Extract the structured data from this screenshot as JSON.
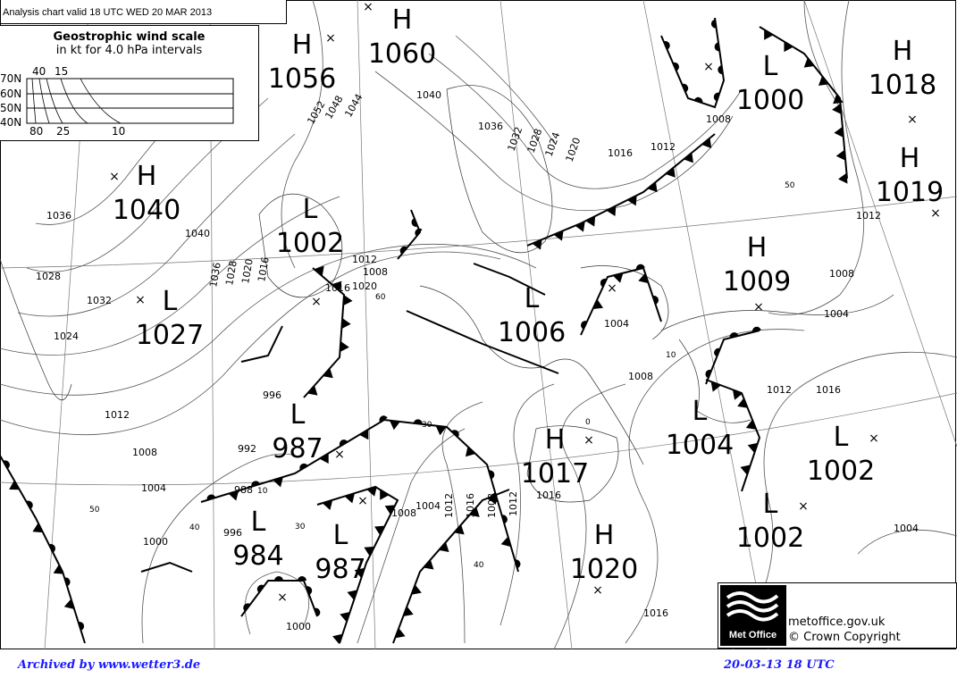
{
  "header": {
    "title": "Analysis chart  valid 18 UTC WED 20  MAR 2013"
  },
  "wind_scale": {
    "title": "Geostrophic wind scale",
    "subtitle": "in kt for 4.0 hPa intervals",
    "latitudes": [
      "70N",
      "60N",
      "50N",
      "40N"
    ],
    "top_labels": [
      "40",
      "15"
    ],
    "bottom_labels": [
      "80",
      "25",
      "10"
    ]
  },
  "pressure_centres": [
    {
      "type": "H",
      "value": "1056"
    },
    {
      "type": "H",
      "value": "1060"
    },
    {
      "type": "L",
      "value": "1000"
    },
    {
      "type": "H",
      "value": "1018"
    },
    {
      "type": "H",
      "value": "1019"
    },
    {
      "type": "H",
      "value": "1040"
    },
    {
      "type": "L",
      "value": "1002"
    },
    {
      "type": "L",
      "value": "1027"
    },
    {
      "type": "H",
      "value": "1009"
    },
    {
      "type": "L",
      "value": "1006"
    },
    {
      "type": "L",
      "value": "987"
    },
    {
      "type": "H",
      "value": "1017"
    },
    {
      "type": "L",
      "value": "1004"
    },
    {
      "type": "L",
      "value": "1002"
    },
    {
      "type": "L",
      "value": "1002"
    },
    {
      "type": "L",
      "value": "984"
    },
    {
      "type": "L",
      "value": "987"
    },
    {
      "type": "H",
      "value": "1020"
    }
  ],
  "isobar_labels": [
    "1052",
    "1048",
    "1044",
    "1040",
    "1036",
    "1032",
    "1028",
    "1024",
    "1020",
    "1016",
    "1012",
    "1008",
    "1040",
    "1036",
    "1028",
    "1032",
    "1024",
    "1036",
    "1028",
    "1020",
    "1016",
    "1012",
    "1008",
    "1020",
    "1016",
    "1012",
    "1008",
    "1004",
    "1000",
    "996",
    "992",
    "988",
    "996",
    "1000",
    "1004",
    "1008",
    "1012",
    "1016",
    "1008",
    "1012",
    "1016",
    "1004",
    "1008",
    "1012",
    "1016",
    "1008",
    "1004",
    "1004",
    "1016",
    "1012"
  ],
  "latitude_labels": [
    "60",
    "50",
    "40",
    "30",
    "40",
    "30",
    "10",
    "0",
    "10",
    "50"
  ],
  "logo": {
    "name": "Met Office",
    "line1": "metoffice.gov.uk",
    "line2": "© Crown Copyright"
  },
  "footer": {
    "archive": "Archived by www.wetter3.de",
    "datetime": "20-03-13 18 UTC"
  }
}
